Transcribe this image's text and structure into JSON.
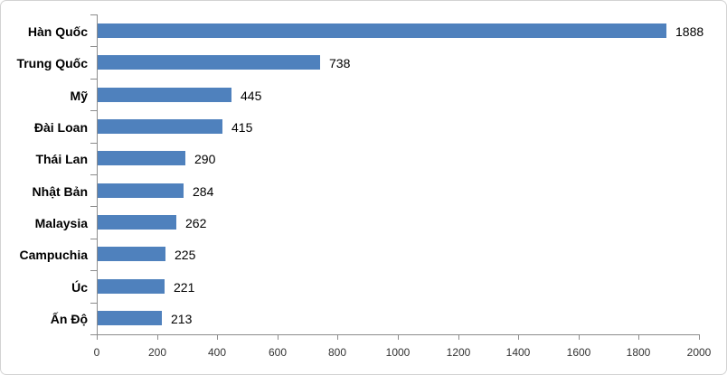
{
  "chart_data": {
    "type": "bar",
    "orientation": "horizontal",
    "title": "",
    "xlabel": "",
    "ylabel": "",
    "categories": [
      "Hàn Quốc",
      "Trung Quốc",
      "Mỹ",
      "Đài Loan",
      "Thái Lan",
      "Nhật Bản",
      "Malaysia",
      "Campuchia",
      "Úc",
      "Ấn Độ"
    ],
    "values": [
      1888,
      738,
      445,
      415,
      290,
      284,
      262,
      225,
      221,
      213
    ],
    "data_labels": [
      "1888",
      "738",
      "445",
      "415",
      "290",
      "284",
      "262",
      "225",
      "221",
      "213"
    ],
    "xlim": [
      0,
      2000
    ],
    "xticks": [
      0,
      200,
      400,
      600,
      800,
      1000,
      1200,
      1400,
      1600,
      1800,
      2000
    ],
    "xtick_labels": [
      "0",
      "200",
      "400",
      "600",
      "800",
      "1000",
      "1200",
      "1400",
      "1600",
      "1800",
      "2000"
    ],
    "grid": false,
    "legend": false,
    "bar_color": "#4F81BD",
    "axis_color": "#8c8c8c",
    "label_color": "#000000",
    "tick_label_color": "#333333"
  }
}
